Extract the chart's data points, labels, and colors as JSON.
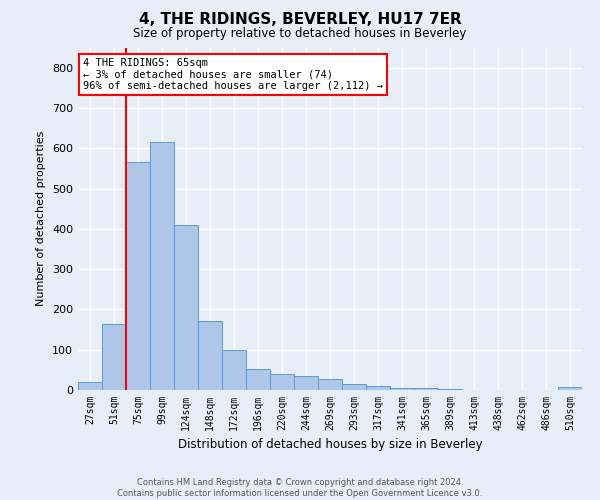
{
  "title": "4, THE RIDINGS, BEVERLEY, HU17 7ER",
  "subtitle": "Size of property relative to detached houses in Beverley",
  "xlabel": "Distribution of detached houses by size in Beverley",
  "ylabel": "Number of detached properties",
  "categories": [
    "27sqm",
    "51sqm",
    "75sqm",
    "99sqm",
    "124sqm",
    "148sqm",
    "172sqm",
    "196sqm",
    "220sqm",
    "244sqm",
    "269sqm",
    "293sqm",
    "317sqm",
    "341sqm",
    "365sqm",
    "389sqm",
    "413sqm",
    "438sqm",
    "462sqm",
    "486sqm",
    "510sqm"
  ],
  "values": [
    20,
    165,
    565,
    615,
    410,
    172,
    100,
    52,
    40,
    35,
    28,
    15,
    10,
    5,
    5,
    3,
    0,
    0,
    0,
    0,
    8
  ],
  "bar_color": "#aec6e8",
  "bar_edge_color": "#5b9bd5",
  "annotation_box_text": "4 THE RIDINGS: 65sqm\n← 3% of detached houses are smaller (74)\n96% of semi-detached houses are larger (2,112) →",
  "vline_x_index": 1.5,
  "background_color": "#e8eef8",
  "grid_color": "#ffffff",
  "footer_text": "Contains HM Land Registry data © Crown copyright and database right 2024.\nContains public sector information licensed under the Open Government Licence v3.0.",
  "ylim": [
    0,
    850
  ],
  "yticks": [
    0,
    100,
    200,
    300,
    400,
    500,
    600,
    700,
    800
  ]
}
